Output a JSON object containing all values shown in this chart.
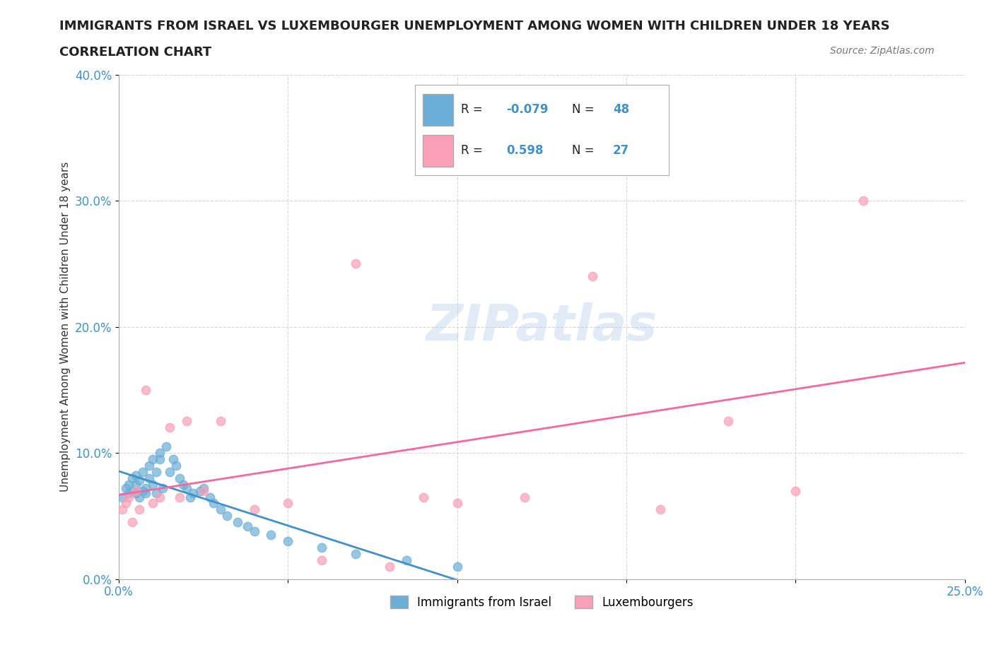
{
  "title_line1": "IMMIGRANTS FROM ISRAEL VS LUXEMBOURGER UNEMPLOYMENT AMONG WOMEN WITH CHILDREN UNDER 18 YEARS",
  "title_line2": "CORRELATION CHART",
  "source": "Source: ZipAtlas.com",
  "xlabel": "",
  "ylabel": "Unemployment Among Women with Children Under 18 years",
  "xlim": [
    0.0,
    0.25
  ],
  "ylim": [
    0.0,
    0.4
  ],
  "xticks": [
    0.0,
    0.05,
    0.1,
    0.15,
    0.2,
    0.25
  ],
  "yticks": [
    0.0,
    0.1,
    0.2,
    0.3,
    0.4
  ],
  "ytick_labels": [
    "0.0%",
    "10.0%",
    "20.0%",
    "30.0%",
    "40.0%"
  ],
  "xtick_labels": [
    "0.0%",
    "",
    "",
    "",
    "",
    "25.0%"
  ],
  "color_blue": "#6baed6",
  "color_pink": "#fa9fb5",
  "color_line_blue": "#4292c6",
  "color_line_pink": "#f768a1",
  "watermark": "ZIPatlas",
  "legend_R_blue": "-0.079",
  "legend_N_blue": "48",
  "legend_R_pink": "0.598",
  "legend_N_pink": "27",
  "israel_x": [
    0.001,
    0.002,
    0.003,
    0.003,
    0.004,
    0.004,
    0.005,
    0.005,
    0.005,
    0.006,
    0.006,
    0.007,
    0.007,
    0.008,
    0.008,
    0.009,
    0.009,
    0.01,
    0.01,
    0.011,
    0.011,
    0.012,
    0.012,
    0.013,
    0.014,
    0.015,
    0.016,
    0.017,
    0.018,
    0.019,
    0.02,
    0.021,
    0.022,
    0.024,
    0.025,
    0.027,
    0.028,
    0.03,
    0.032,
    0.035,
    0.038,
    0.04,
    0.045,
    0.05,
    0.06,
    0.07,
    0.085,
    0.1
  ],
  "israel_y": [
    0.065,
    0.072,
    0.068,
    0.075,
    0.07,
    0.08,
    0.068,
    0.075,
    0.082,
    0.065,
    0.078,
    0.07,
    0.085,
    0.072,
    0.068,
    0.08,
    0.09,
    0.075,
    0.095,
    0.068,
    0.085,
    0.095,
    0.1,
    0.072,
    0.105,
    0.085,
    0.095,
    0.09,
    0.08,
    0.075,
    0.072,
    0.065,
    0.068,
    0.07,
    0.072,
    0.065,
    0.06,
    0.055,
    0.05,
    0.045,
    0.042,
    0.038,
    0.035,
    0.03,
    0.025,
    0.02,
    0.015,
    0.01
  ],
  "lux_x": [
    0.001,
    0.002,
    0.003,
    0.004,
    0.005,
    0.006,
    0.008,
    0.01,
    0.012,
    0.015,
    0.018,
    0.02,
    0.025,
    0.03,
    0.04,
    0.05,
    0.06,
    0.07,
    0.08,
    0.09,
    0.1,
    0.12,
    0.14,
    0.16,
    0.18,
    0.2,
    0.22
  ],
  "lux_y": [
    0.055,
    0.06,
    0.065,
    0.045,
    0.07,
    0.055,
    0.15,
    0.06,
    0.065,
    0.12,
    0.065,
    0.125,
    0.07,
    0.125,
    0.055,
    0.06,
    0.015,
    0.25,
    0.01,
    0.065,
    0.06,
    0.065,
    0.24,
    0.055,
    0.125,
    0.07,
    0.3
  ]
}
